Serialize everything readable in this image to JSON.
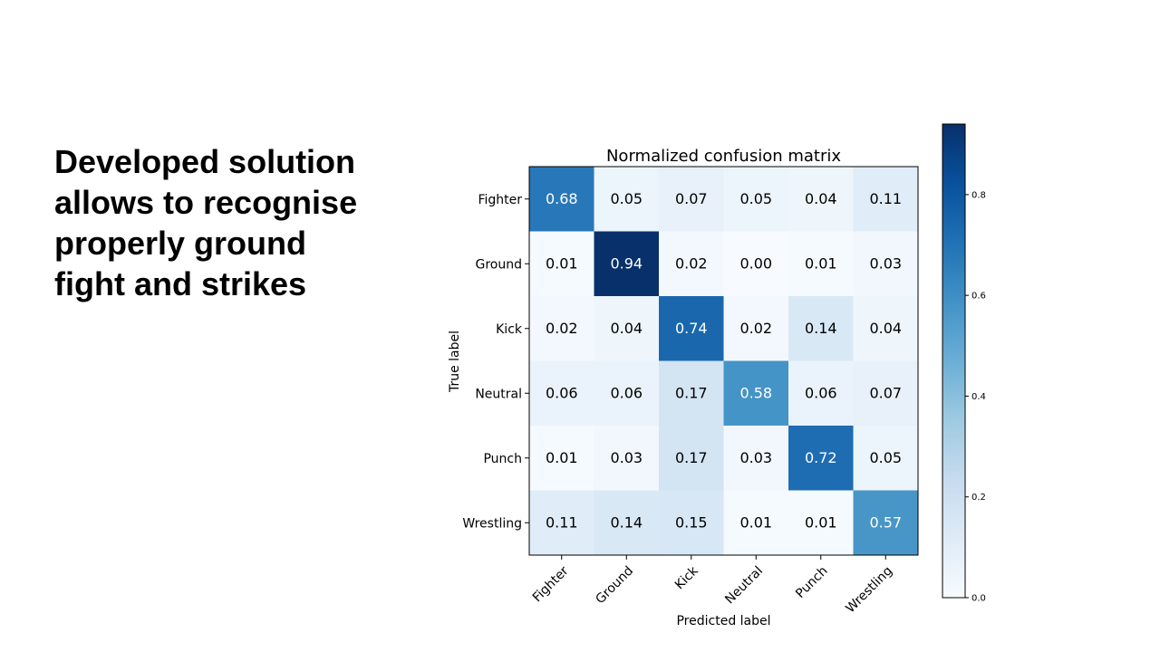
{
  "slide": {
    "text_lines": [
      "Developed solution",
      "allows to recognise",
      "properly ground",
      "fight and strikes"
    ]
  },
  "chart_data": {
    "type": "heatmap",
    "title": "Normalized confusion matrix",
    "xlabel": "Predicted label",
    "ylabel": "True label",
    "x_categories": [
      "Fighter",
      "Ground",
      "Kick",
      "Neutral",
      "Punch",
      "Wrestling"
    ],
    "y_categories": [
      "Fighter",
      "Ground",
      "Kick",
      "Neutral",
      "Punch",
      "Wrestling"
    ],
    "values": [
      [
        0.68,
        0.05,
        0.07,
        0.05,
        0.04,
        0.11
      ],
      [
        0.01,
        0.94,
        0.02,
        0.0,
        0.01,
        0.03
      ],
      [
        0.02,
        0.04,
        0.74,
        0.02,
        0.14,
        0.04
      ],
      [
        0.06,
        0.06,
        0.17,
        0.58,
        0.06,
        0.07
      ],
      [
        0.01,
        0.03,
        0.17,
        0.03,
        0.72,
        0.05
      ],
      [
        0.11,
        0.14,
        0.15,
        0.01,
        0.01,
        0.57
      ]
    ],
    "value_labels": [
      [
        "0.68",
        "0.05",
        "0.07",
        "0.05",
        "0.04",
        "0.11"
      ],
      [
        "0.01",
        "0.94",
        "0.02",
        "0.00",
        "0.01",
        "0.03"
      ],
      [
        "0.02",
        "0.04",
        "0.74",
        "0.02",
        "0.14",
        "0.04"
      ],
      [
        "0.06",
        "0.06",
        "0.17",
        "0.58",
        "0.06",
        "0.07"
      ],
      [
        "0.01",
        "0.03",
        "0.17",
        "0.03",
        "0.72",
        "0.05"
      ],
      [
        "0.11",
        "0.14",
        "0.15",
        "0.01",
        "0.01",
        "0.57"
      ]
    ],
    "colormap": "Blues",
    "vmin": 0.0,
    "vmax": 0.94,
    "colorbar": {
      "ticks": [
        0.0,
        0.2,
        0.4,
        0.6,
        0.8
      ],
      "tick_labels": [
        "0.0",
        "0.2",
        "0.4",
        "0.6",
        "0.8"
      ]
    }
  }
}
